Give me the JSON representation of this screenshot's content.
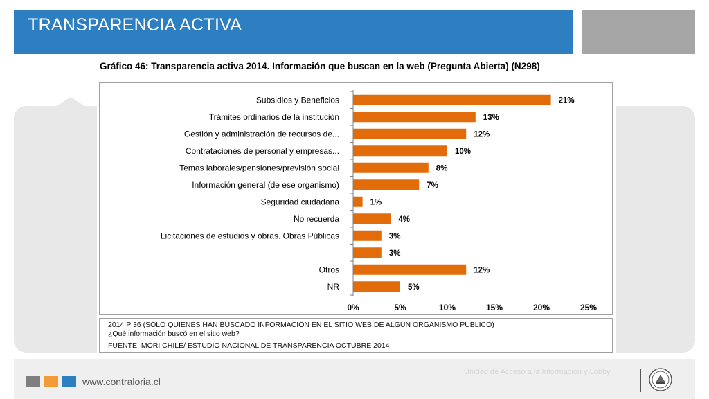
{
  "header": {
    "title": "TRANSPARENCIA ACTIVA"
  },
  "chart_data": {
    "type": "bar",
    "orientation": "horizontal",
    "title": "Gráfico 46: Transparencia activa 2014. Información que buscan en la web (Pregunta Abierta) (N298)",
    "categories": [
      "Subsidios y Beneficios",
      "Trámites ordinarios de la institución",
      "Gestión y administración de recursos de...",
      "Contrataciones de personal y empresas...",
      "Temas laborales/pensiones/previsión social",
      "Información general (de ese organismo)",
      "Seguridad ciudadana",
      "No recuerda",
      "Licitaciones de estudios y obras. Obras Públicas",
      "",
      "Otros",
      "NR"
    ],
    "values": [
      21,
      13,
      12,
      10,
      8,
      7,
      1,
      4,
      3,
      3,
      12,
      5
    ],
    "data_labels": [
      "21%",
      "13%",
      "12%",
      "10%",
      "8%",
      "7%",
      "1%",
      "4%",
      "3%",
      "3%",
      "12%",
      "5%"
    ],
    "xlim": [
      0,
      25
    ],
    "xticks": [
      0,
      5,
      10,
      15,
      20,
      25
    ],
    "xtick_labels": [
      "0%",
      "5%",
      "10%",
      "15%",
      "20%",
      "25%"
    ],
    "bar_color": "#e36c0a",
    "grid": false,
    "xlabel": "",
    "ylabel": ""
  },
  "note": {
    "line1": "2014 P 36 (SÓLO QUIENES HAN BUSCADO INFORMACIÓN EN EL SITIO WEB DE ALGÚN ORGANISMO PÚBLICO)",
    "line2": "¿Qué información buscó en el sitio web?",
    "line3": "FUENTE: MORI CHILE/ ESTUDIO NACIONAL DE TRANSPARENCIA OCTUBRE 2014"
  },
  "footer": {
    "url": "www.contraloria.cl",
    "unit": "Unidad de Acceso a la Información y Lobby",
    "colors": [
      "#7f7f7f",
      "#f29b38",
      "#2e7fc1"
    ]
  },
  "colors": {
    "header_blue": "#2e7fc1",
    "bar_orange": "#e36c0a"
  }
}
